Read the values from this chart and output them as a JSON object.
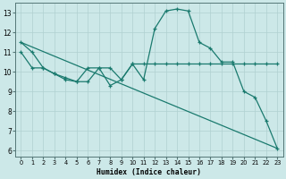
{
  "xlabel": "Humidex (Indice chaleur)",
  "bg_color": "#cce8e8",
  "grid_color": "#b0d0d0",
  "line_color": "#1a7a6e",
  "xlim": [
    -0.5,
    23.5
  ],
  "ylim": [
    5.7,
    13.5
  ],
  "yticks": [
    6,
    7,
    8,
    9,
    10,
    11,
    12,
    13
  ],
  "xticks": [
    0,
    1,
    2,
    3,
    4,
    5,
    6,
    7,
    8,
    9,
    10,
    11,
    12,
    13,
    14,
    15,
    16,
    17,
    18,
    19,
    20,
    21,
    22,
    23
  ],
  "s1x": [
    0,
    1,
    2,
    3,
    4,
    5,
    6,
    7,
    8,
    9,
    10,
    11,
    12,
    13,
    14,
    15,
    16,
    17,
    18,
    19,
    20,
    21,
    22,
    23
  ],
  "s1y": [
    11.5,
    11.0,
    10.2,
    9.9,
    9.7,
    9.5,
    10.2,
    10.2,
    9.3,
    9.6,
    10.4,
    9.6,
    12.2,
    13.1,
    13.2,
    13.1,
    11.5,
    11.2,
    10.5,
    10.5,
    9.0,
    8.7,
    7.5,
    6.1
  ],
  "s2x": [
    0,
    1,
    2,
    3,
    4,
    5,
    6,
    7,
    8,
    9,
    10,
    11,
    12,
    13,
    14,
    15,
    16,
    17,
    18,
    19,
    20,
    21,
    22,
    23
  ],
  "s2y": [
    11.0,
    10.2,
    10.2,
    9.9,
    9.6,
    9.5,
    9.5,
    10.2,
    10.2,
    9.6,
    10.4,
    10.4,
    10.4,
    10.4,
    10.4,
    10.4,
    10.4,
    10.4,
    10.4,
    10.4,
    10.4,
    10.4,
    10.4,
    10.4
  ],
  "s3x": [
    0,
    23
  ],
  "s3y": [
    11.5,
    6.1
  ]
}
